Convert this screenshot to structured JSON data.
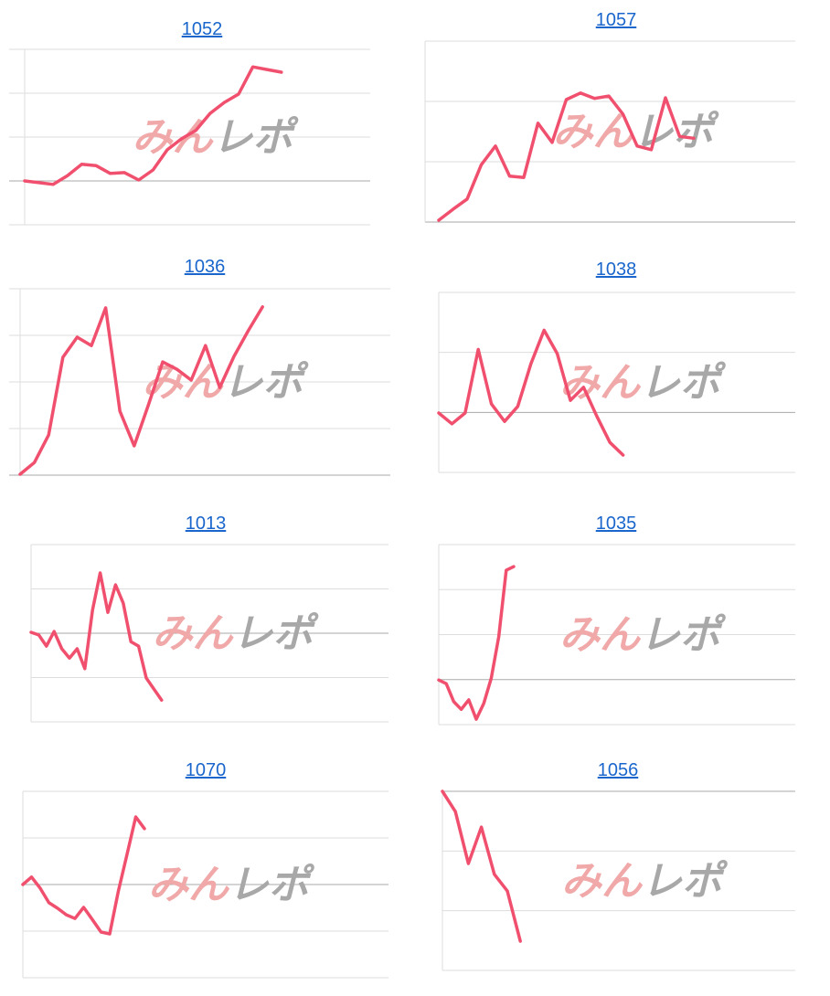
{
  "watermark": {
    "left": "みん",
    "right": "レポ"
  },
  "chart_data": [
    {
      "type": "line",
      "title": "1052",
      "color": "#f0506e",
      "ylim": [
        0,
        4
      ],
      "yticks": [
        0,
        1,
        2,
        3,
        4
      ],
      "baseline": 1,
      "values": [
        1.0,
        0.96,
        0.92,
        1.12,
        1.38,
        1.35,
        1.17,
        1.19,
        1.02,
        1.25,
        1.71,
        1.96,
        2.15,
        2.54,
        2.79,
        2.98,
        3.6,
        3.54,
        3.48
      ]
    },
    {
      "type": "line",
      "title": "1057",
      "color": "#f0506e",
      "ylim": [
        0,
        3
      ],
      "yticks": [
        0,
        1,
        2,
        3
      ],
      "baseline": 0,
      "values": [
        0.03,
        0.21,
        0.38,
        0.95,
        1.26,
        0.76,
        0.74,
        1.64,
        1.32,
        2.03,
        2.14,
        2.05,
        2.09,
        1.79,
        1.26,
        1.2,
        2.06,
        1.42,
        1.39
      ]
    },
    {
      "type": "line",
      "title": "1036",
      "color": "#f0506e",
      "ylim": [
        0,
        4
      ],
      "yticks": [
        0,
        1,
        2,
        3,
        4
      ],
      "baseline": 0,
      "values": [
        0.02,
        0.27,
        0.86,
        2.53,
        2.96,
        2.78,
        3.59,
        1.37,
        0.63,
        1.51,
        2.43,
        2.27,
        2.04,
        2.78,
        1.88,
        2.55,
        3.1,
        3.61
      ]
    },
    {
      "type": "line",
      "title": "1038",
      "color": "#f0506e",
      "ylim": [
        0,
        3
      ],
      "yticks": [
        0,
        1,
        2,
        3
      ],
      "baseline": 1,
      "values": [
        0.99,
        0.81,
        0.99,
        2.05,
        1.14,
        0.85,
        1.1,
        1.81,
        2.37,
        1.98,
        1.2,
        1.42,
        0.94,
        0.5,
        0.29
      ]
    },
    {
      "type": "line",
      "title": "1013",
      "color": "#f0506e",
      "ylim": [
        0,
        4
      ],
      "yticks": [
        0,
        1,
        2,
        3,
        4
      ],
      "baseline": 2,
      "values": [
        2.02,
        1.96,
        1.71,
        2.04,
        1.65,
        1.44,
        1.65,
        1.2,
        2.52,
        3.36,
        2.47,
        3.09,
        2.68,
        1.81,
        1.71,
        0.99,
        0.74,
        0.49
      ]
    },
    {
      "type": "line",
      "title": "1035",
      "color": "#f0506e",
      "ylim": [
        0,
        4
      ],
      "yticks": [
        0,
        1,
        2,
        3,
        4
      ],
      "baseline": 1,
      "values": [
        0.99,
        0.91,
        0.51,
        0.34,
        0.55,
        0.12,
        0.47,
        1.03,
        1.95,
        3.43,
        3.51
      ]
    },
    {
      "type": "line",
      "title": "1070",
      "color": "#f0506e",
      "ylim": [
        0,
        4
      ],
      "yticks": [
        0,
        1,
        2,
        3,
        4
      ],
      "baseline": 2,
      "values": [
        2.0,
        2.16,
        1.92,
        1.61,
        1.49,
        1.35,
        1.27,
        1.51,
        1.25,
        0.98,
        0.94,
        1.86,
        2.65,
        3.45,
        3.2
      ]
    },
    {
      "type": "line",
      "title": "1056",
      "color": "#f0506e",
      "ylim": [
        0,
        3
      ],
      "yticks": [
        0,
        1,
        2,
        3
      ],
      "baseline": 3,
      "values": [
        3.0,
        2.66,
        1.79,
        2.4,
        1.61,
        1.33,
        0.49
      ]
    }
  ]
}
